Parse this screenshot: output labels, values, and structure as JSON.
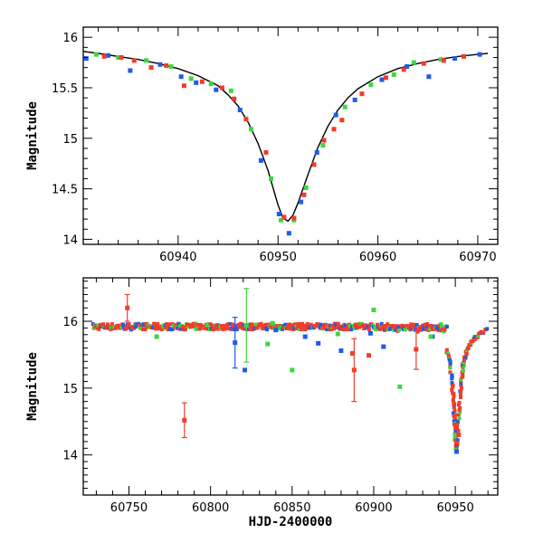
{
  "chart_data": [
    {
      "type": "scatter",
      "panel": "top",
      "title": "",
      "xlabel": "",
      "ylabel": "Magnitude",
      "xlim": [
        60930.5,
        60972
      ],
      "ylim": [
        16.1,
        13.95
      ],
      "y_inverted": true,
      "xticks": [
        60940,
        60950,
        60960,
        60970
      ],
      "xtick_labels": [
        "60940",
        "60950",
        "60960",
        "60970"
      ],
      "yticks": [
        14,
        14.5,
        15,
        15.5,
        16
      ],
      "ytick_labels": [
        "14",
        "14.5",
        "15",
        "15.5",
        "16"
      ],
      "colors": {
        "blue": "#1f5ce6",
        "green": "#3ed83e",
        "red": "#f23c2c",
        "model": "#000000"
      },
      "model_curve": {
        "name": "fit",
        "x": [
          60930.5,
          60932,
          60934,
          60936,
          60938,
          60940,
          60942,
          60944,
          60945,
          60946,
          60947,
          60948,
          60949,
          60949.5,
          60950,
          60950.5,
          60951,
          60951.5,
          60952,
          60953,
          60954,
          60955,
          60956,
          60957,
          60958,
          60960,
          60962,
          60964,
          60966,
          60968,
          60970,
          60971
        ],
        "y": [
          15.86,
          15.84,
          15.81,
          15.78,
          15.74,
          15.69,
          15.62,
          15.52,
          15.43,
          15.32,
          15.16,
          14.95,
          14.68,
          14.51,
          14.34,
          14.21,
          14.18,
          14.24,
          14.36,
          14.64,
          14.91,
          15.12,
          15.28,
          15.4,
          15.49,
          15.61,
          15.69,
          15.74,
          15.78,
          15.81,
          15.83,
          15.84
        ]
      },
      "series": [
        {
          "name": "blue",
          "color": "#1f5ce6",
          "x": [
            60930.8,
            60933,
            60935.2,
            60938.2,
            60940.3,
            60941.8,
            60943.8,
            60946.2,
            60948.3,
            60950.1,
            60951.1,
            60952.3,
            60953.9,
            60955.8,
            60957.7,
            60960.4,
            60962.9,
            60965.1,
            60967.7,
            60970.2
          ],
          "y": [
            15.79,
            15.82,
            15.67,
            15.73,
            15.61,
            15.55,
            15.48,
            15.28,
            14.78,
            14.25,
            14.06,
            14.37,
            14.86,
            15.23,
            15.38,
            15.58,
            15.71,
            15.61,
            15.79,
            15.83
          ]
        },
        {
          "name": "green",
          "color": "#3ed83e",
          "x": [
            60931.8,
            60934,
            60936.8,
            60939.3,
            60941.3,
            60943.3,
            60945.3,
            60947.3,
            60949.3,
            60950.3,
            60951.6,
            60952.8,
            60954.5,
            60956.7,
            60959.3,
            60961.6,
            60963.6,
            60966.3,
            60968.6
          ],
          "y": [
            15.83,
            15.8,
            15.77,
            15.71,
            15.59,
            15.54,
            15.47,
            15.09,
            14.6,
            14.19,
            14.19,
            14.51,
            14.93,
            15.31,
            15.53,
            15.63,
            15.75,
            15.78,
            15.81
          ]
        },
        {
          "name": "red",
          "color": "#f23c2c",
          "x": [
            60932.6,
            60934.3,
            60935.6,
            60937.3,
            60938.8,
            60940.6,
            60942.4,
            60944.4,
            60945.6,
            60946.8,
            60948.8,
            60950.6,
            60951.6,
            60952.6,
            60953.6,
            60954.6,
            60955.6,
            60956.4,
            60958.4,
            60960.8,
            60962.6,
            60964.6,
            60966.6,
            60968.6
          ],
          "y": [
            15.81,
            15.8,
            15.77,
            15.7,
            15.72,
            15.52,
            15.56,
            15.5,
            15.39,
            15.19,
            14.86,
            14.22,
            14.21,
            14.44,
            14.74,
            14.98,
            15.09,
            15.18,
            15.44,
            15.6,
            15.68,
            15.74,
            15.77,
            15.81
          ]
        }
      ]
    },
    {
      "type": "scatter",
      "panel": "bottom",
      "title": "",
      "xlabel": "HJD-2400000",
      "ylabel": "Magnitude",
      "xlim": [
        60722,
        60976
      ],
      "ylim": [
        16.65,
        13.4
      ],
      "y_inverted": true,
      "xticks": [
        60750,
        60800,
        60850,
        60900,
        60950
      ],
      "xtick_labels": [
        "60750",
        "60800",
        "60850",
        "60900",
        "60950"
      ],
      "yticks": [
        14,
        15,
        16
      ],
      "ytick_labels": [
        "14",
        "15",
        "16"
      ],
      "baseline": {
        "x_start": 60728,
        "x_end": 60945,
        "magnitude": 15.92
      },
      "outburst_profile": {
        "x": [
          60945,
          60947,
          60948,
          60949,
          60949.5,
          60950,
          60950.5,
          60951,
          60952,
          60953,
          60954,
          60955,
          60957,
          60960,
          60964,
          60970
        ],
        "y": [
          15.58,
          15.35,
          15.08,
          14.78,
          14.52,
          14.25,
          14.1,
          14.2,
          14.54,
          14.9,
          15.18,
          15.38,
          15.54,
          15.69,
          15.8,
          15.88
        ]
      },
      "series": [
        {
          "name": "blue",
          "color": "#1f5ce6",
          "x": [
            60815,
            60821,
            60840,
            60858,
            60866,
            60880,
            60898,
            60906,
            60936,
            60950.8
          ],
          "y": [
            15.68,
            15.27,
            15.87,
            15.77,
            15.67,
            15.56,
            15.82,
            15.62,
            15.77,
            14.05
          ],
          "err": [
            0.38,
            0,
            0,
            0,
            0,
            0,
            0,
            0,
            0,
            0
          ]
        },
        {
          "name": "green",
          "color": "#3ed83e",
          "x": [
            60767,
            60822,
            60835,
            60838,
            60850,
            60878,
            60900,
            60916,
            60935,
            60950
          ],
          "y": [
            15.77,
            15.94,
            15.66,
            15.97,
            15.27,
            15.81,
            16.17,
            15.02,
            15.77,
            14.3
          ],
          "err": [
            0,
            0.55,
            0,
            0,
            0,
            0,
            0,
            0,
            0,
            0
          ]
        },
        {
          "name": "red",
          "color": "#f23c2c",
          "x": [
            60749,
            60784,
            60888,
            60887,
            60897,
            60926,
            60951,
            60952
          ],
          "y": [
            16.2,
            14.52,
            15.27,
            15.52,
            15.49,
            15.58,
            14.18,
            14.3
          ],
          "err": [
            0.2,
            0.26,
            0.47,
            0,
            0,
            0.3,
            0,
            0
          ]
        }
      ]
    }
  ]
}
